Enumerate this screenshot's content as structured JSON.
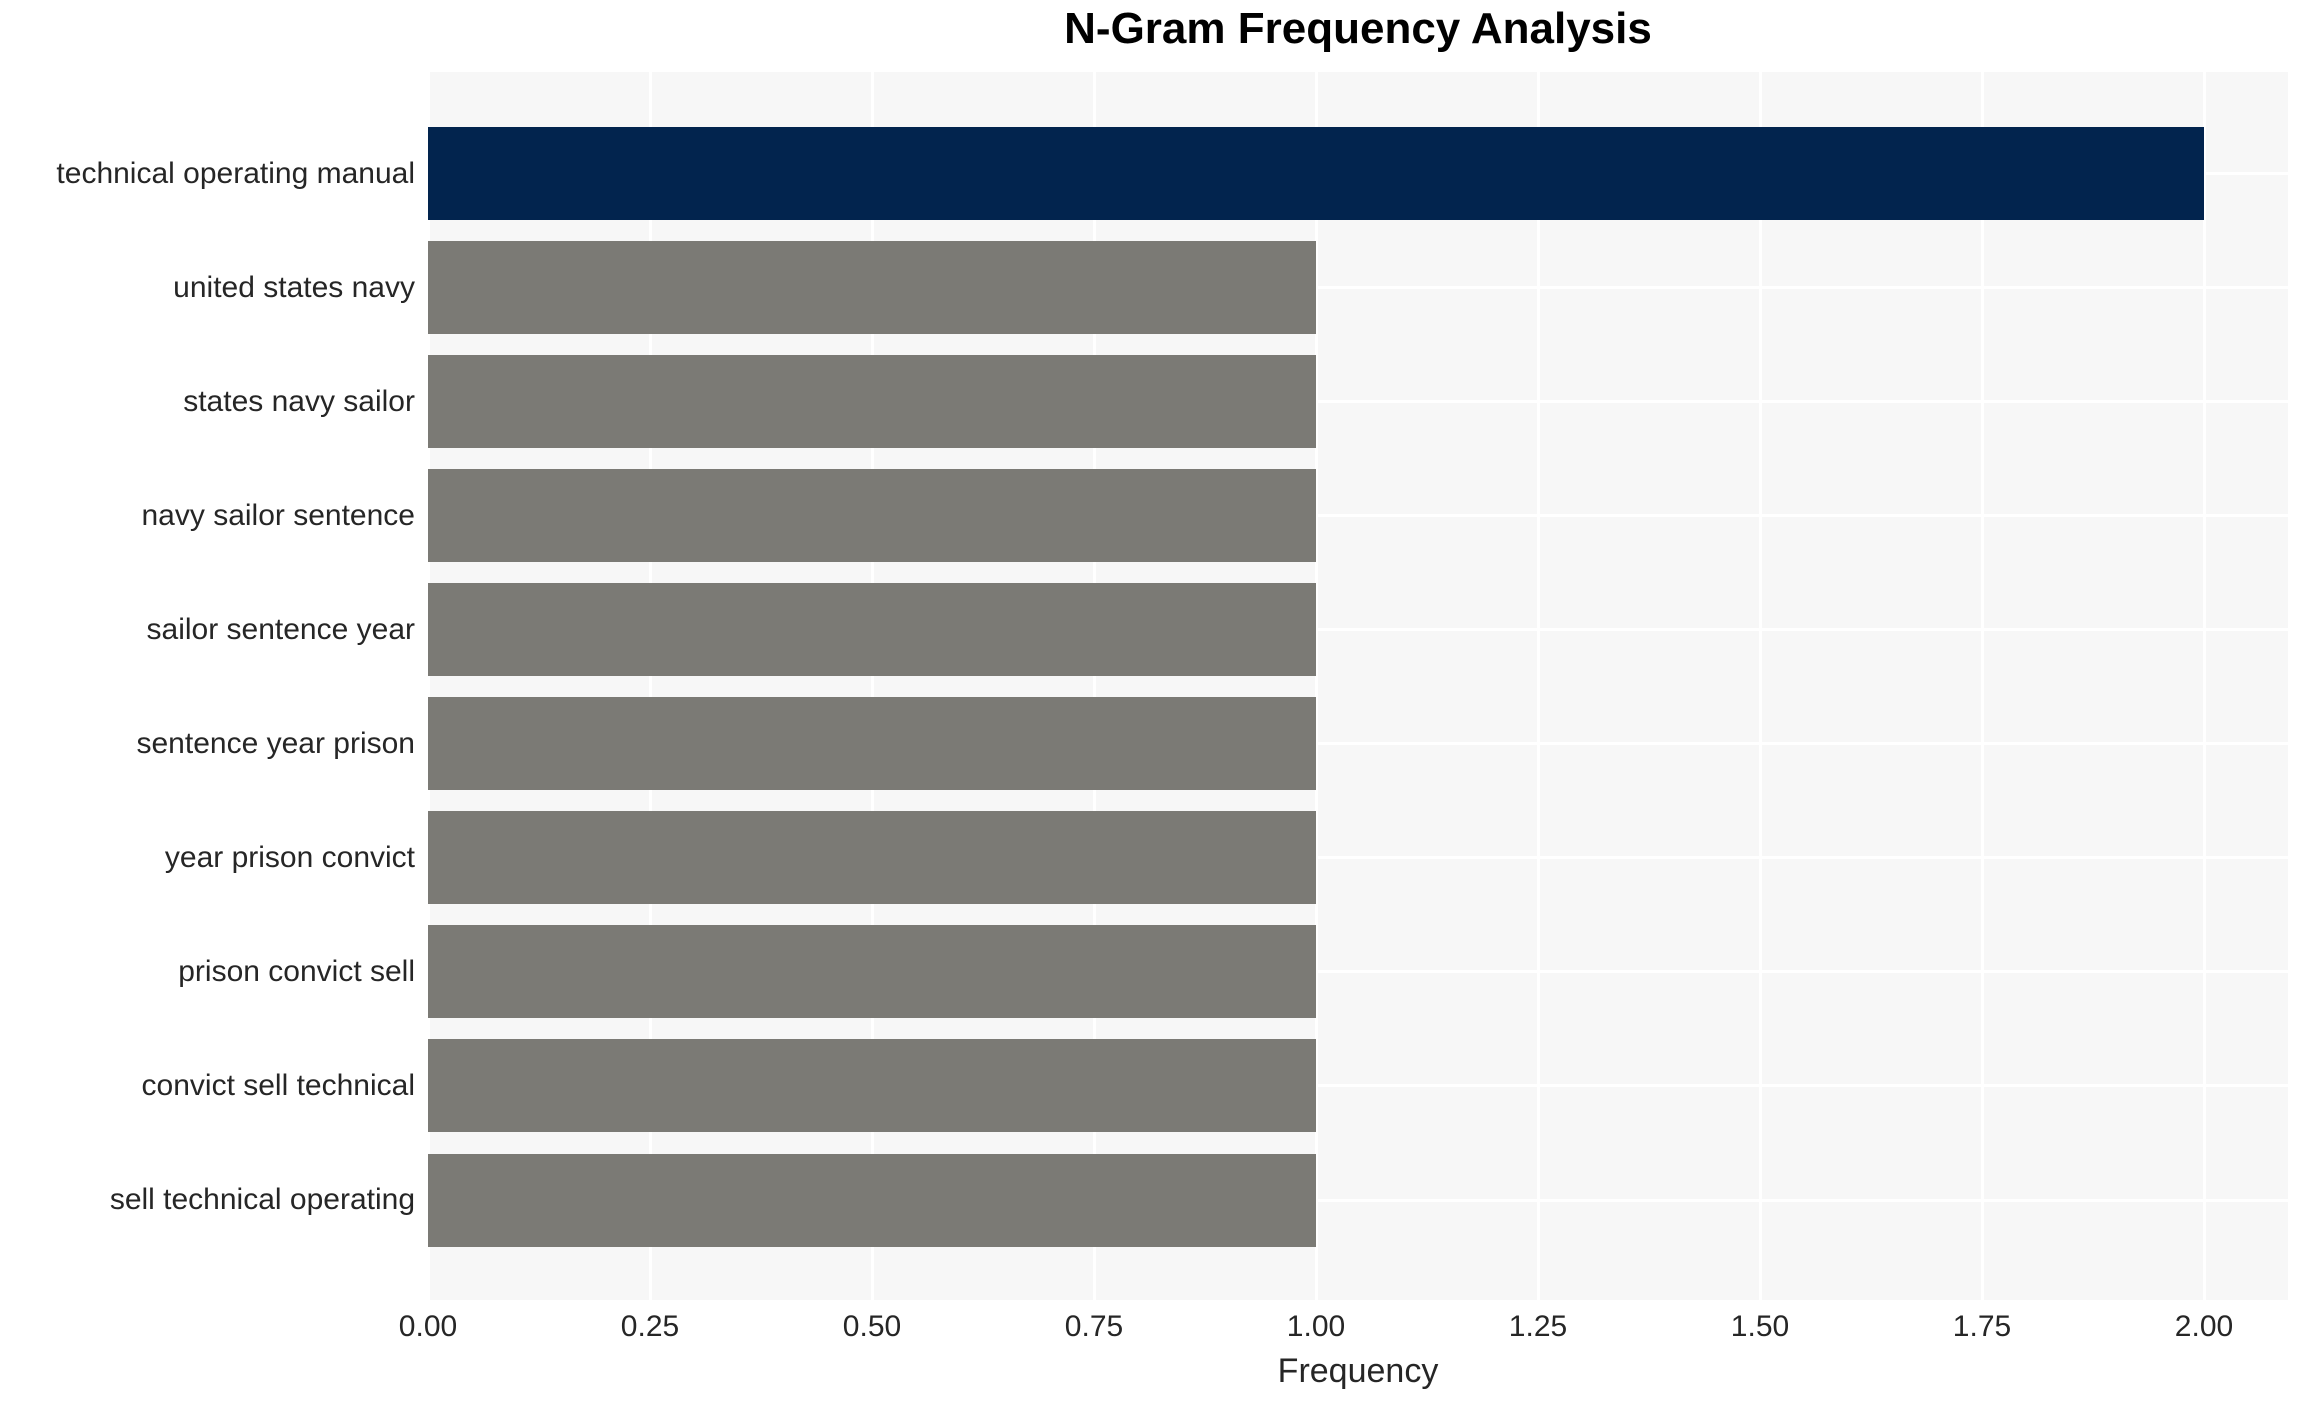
{
  "page": {
    "title": "N-Gram Frequency Analysis"
  },
  "chart_data": {
    "type": "bar",
    "orientation": "horizontal",
    "title": "N-Gram Frequency Analysis",
    "xlabel": "Frequency",
    "ylabel": "",
    "categories": [
      "technical operating manual",
      "united states navy",
      "states navy sailor",
      "navy sailor sentence",
      "sailor sentence year",
      "sentence year prison",
      "year prison convict",
      "prison convict sell",
      "convict sell technical",
      "sell technical operating"
    ],
    "values": [
      2,
      1,
      1,
      1,
      1,
      1,
      1,
      1,
      1,
      1
    ],
    "xlim": [
      0,
      2.09
    ],
    "x_ticks": [
      0,
      0.25,
      0.5,
      0.75,
      1.0,
      1.25,
      1.5,
      1.75,
      2.0
    ],
    "x_tick_labels": [
      "0.00",
      "0.25",
      "0.50",
      "0.75",
      "1.00",
      "1.25",
      "1.50",
      "1.75",
      "2.00"
    ],
    "grid": true,
    "legend": false,
    "colors": {
      "highlight_bar": "#02244e",
      "other_bars": "#7b7a75",
      "plot_background": "#f7f7f7",
      "gridline": "#ffffff",
      "tick_text": "#262626",
      "title_text": "#000000"
    },
    "bar_colors": [
      "#02244e",
      "#7b7a75",
      "#7b7a75",
      "#7b7a75",
      "#7b7a75",
      "#7b7a75",
      "#7b7a75",
      "#7b7a75",
      "#7b7a75",
      "#7b7a75"
    ]
  }
}
